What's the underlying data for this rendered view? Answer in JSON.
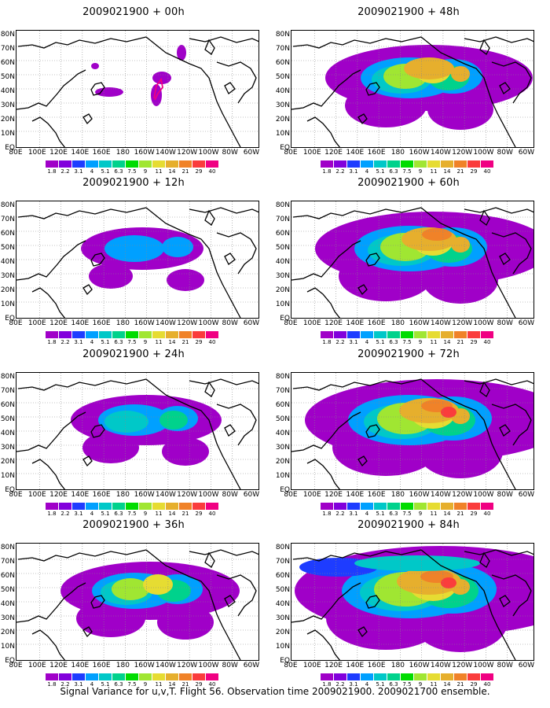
{
  "panels": [
    {
      "title": "2009021900 + 00h",
      "level": 0
    },
    {
      "title": "2009021900 + 48h",
      "level": 4
    },
    {
      "title": "2009021900 + 12h",
      "level": 1
    },
    {
      "title": "2009021900 + 60h",
      "level": 5
    },
    {
      "title": "2009021900 + 24h",
      "level": 2
    },
    {
      "title": "2009021900 + 72h",
      "level": 6
    },
    {
      "title": "2009021900 + 36h",
      "level": 3
    },
    {
      "title": "2009021900 + 84h",
      "level": 7
    }
  ],
  "lat_labels": [
    "80N",
    "70N",
    "60N",
    "50N",
    "40N",
    "30N",
    "20N",
    "10N",
    "EQ"
  ],
  "lon_labels": [
    "80E",
    "100E",
    "120E",
    "140E",
    "160E",
    "180",
    "160W",
    "140W",
    "120W",
    "100W",
    "80W",
    "60W"
  ],
  "colorbar": {
    "colors": [
      "#a000c8",
      "#8200dc",
      "#1e3cff",
      "#00a0ff",
      "#00c8c8",
      "#00d28c",
      "#00dc00",
      "#a0e632",
      "#e6dc32",
      "#e6af2d",
      "#f08228",
      "#fa3c3c",
      "#f00082"
    ],
    "labels": [
      "1.8",
      "2.2",
      "3.1",
      "4",
      "5.1",
      "6.3",
      "7.5",
      "9",
      "11",
      "14",
      "21",
      "29",
      "40"
    ]
  },
  "caption": "Signal Variance for u,v,T. Flight 56. Observation time 2009021900. 2009021700 ensemble."
}
